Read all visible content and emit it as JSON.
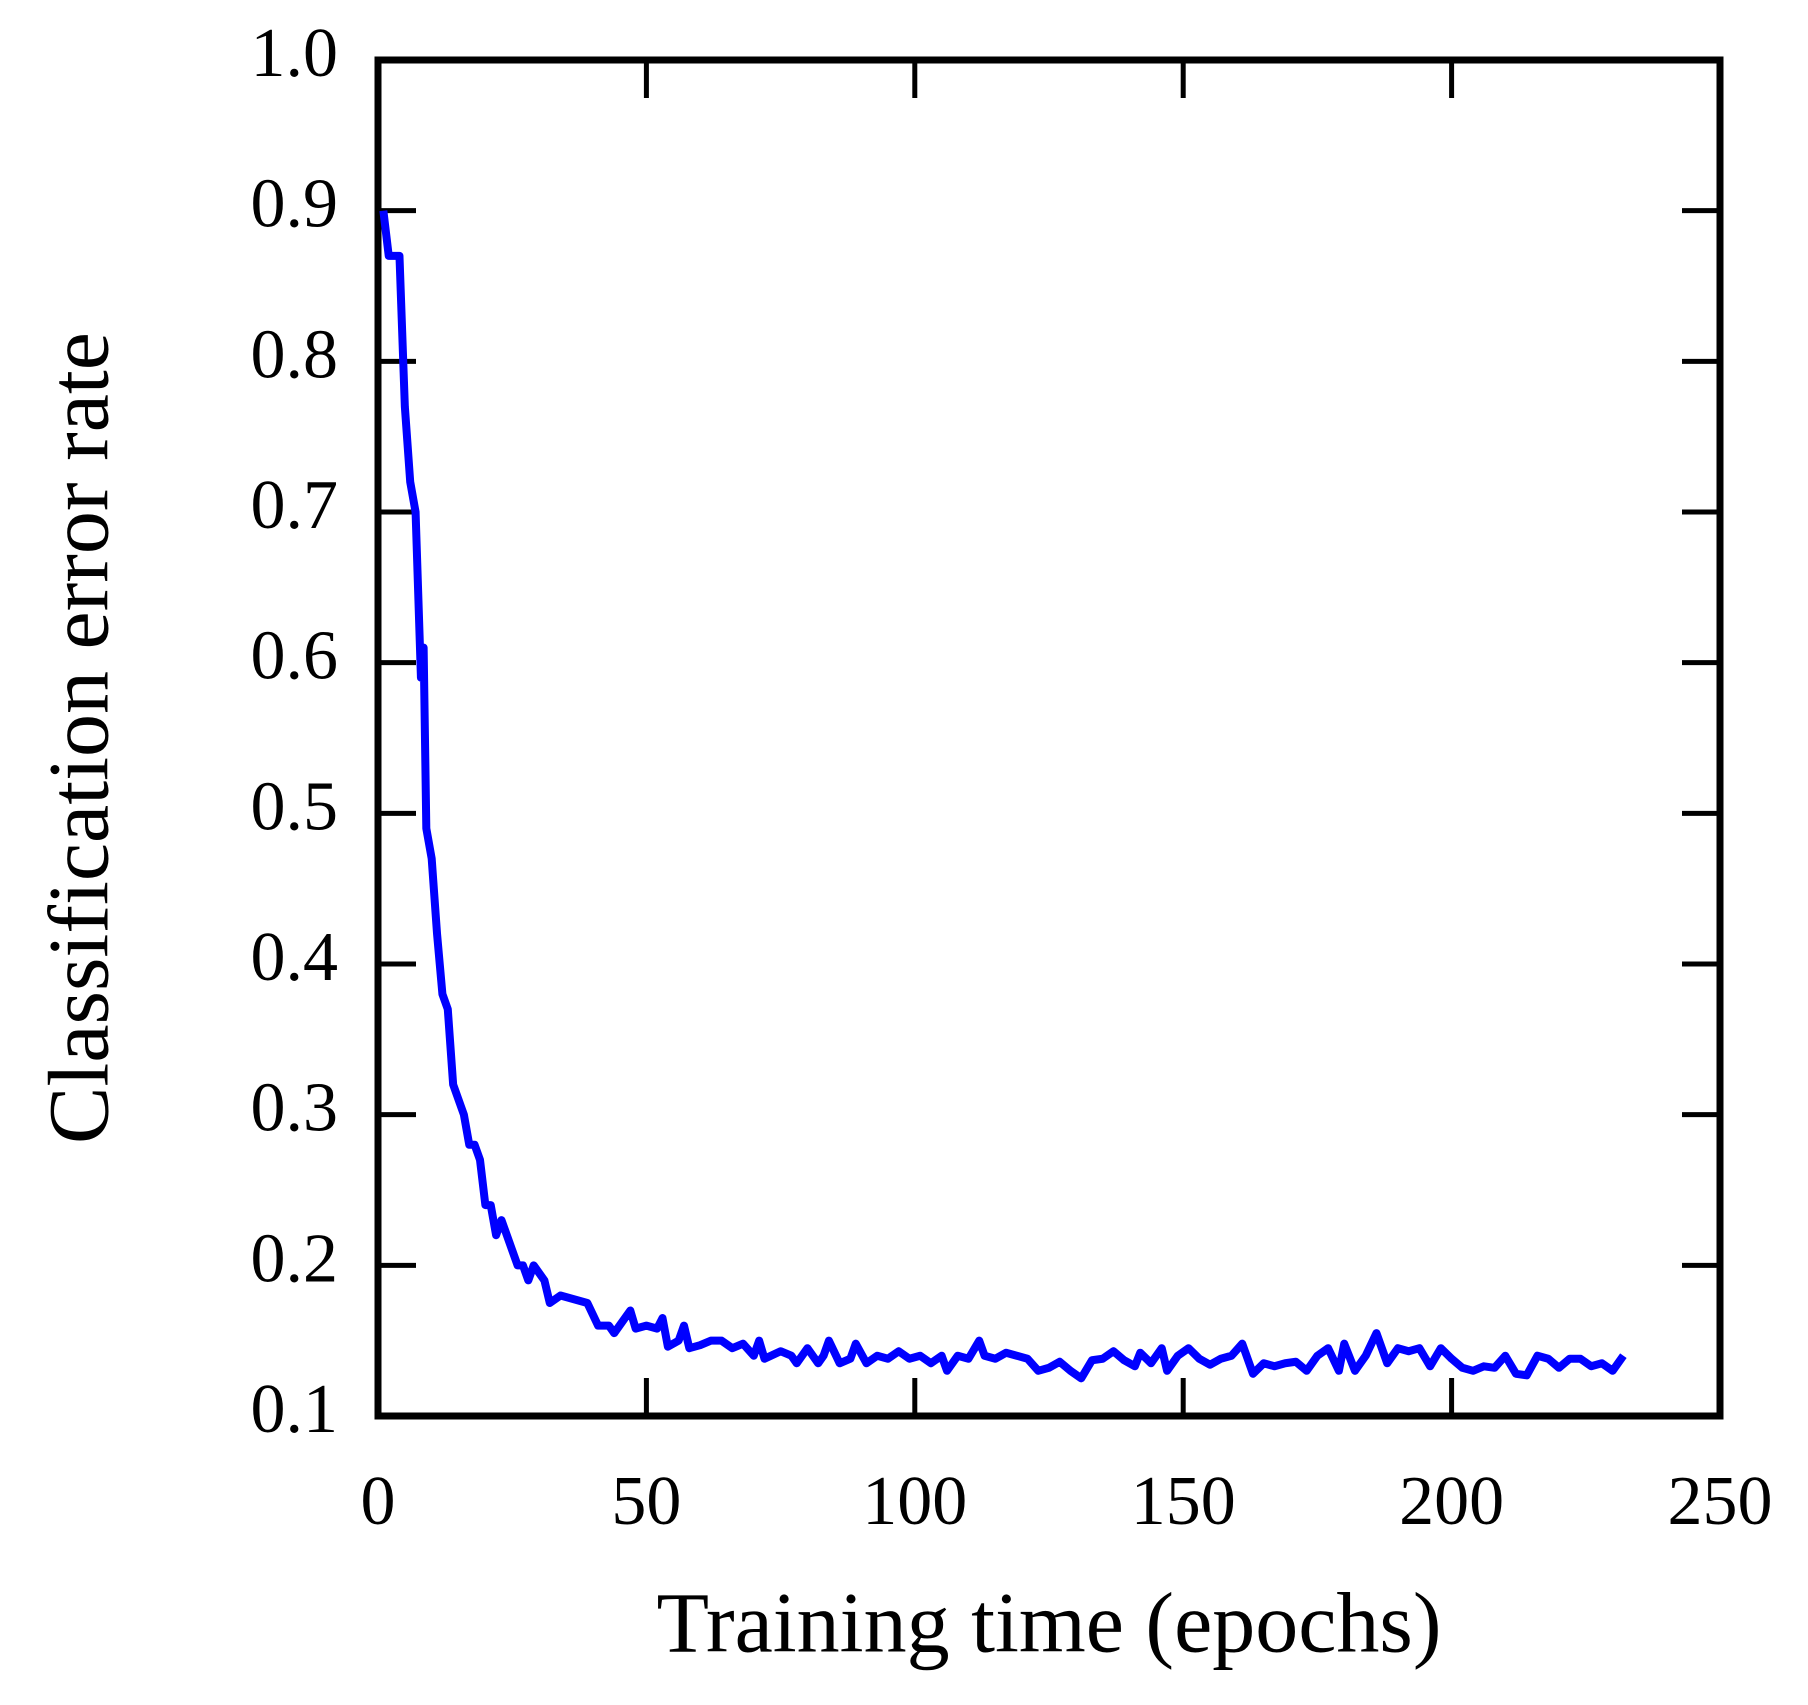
{
  "chart_data": {
    "type": "line",
    "xlabel": "Training time (epochs)",
    "ylabel": "Classification error rate",
    "xlim": [
      0,
      250
    ],
    "ylim": [
      0.1,
      1.0
    ],
    "xticks": [
      0,
      50,
      100,
      150,
      200,
      250
    ],
    "yticks": [
      {
        "value": 0.1,
        "label": "0.1"
      },
      {
        "value": 0.2,
        "label": "0.2"
      },
      {
        "value": 0.3,
        "label": "0.3"
      },
      {
        "value": 0.4,
        "label": "0.4"
      },
      {
        "value": 0.5,
        "label": "0.5"
      },
      {
        "value": 0.6,
        "label": "0.6"
      },
      {
        "value": 0.7,
        "label": "0.7"
      },
      {
        "value": 0.8,
        "label": "0.8"
      },
      {
        "value": 0.9,
        "label": "0.9"
      },
      {
        "value": 1.0,
        "label": "1.0"
      }
    ],
    "series": [
      {
        "color": "#0000ff",
        "x": [
          1,
          2,
          4,
          5,
          6,
          7,
          8,
          8.5,
          9,
          10,
          11,
          12,
          13,
          14,
          16,
          17,
          18,
          19,
          20,
          21,
          22,
          23,
          25,
          26,
          27,
          28,
          29,
          31,
          32,
          34,
          36,
          39,
          41,
          43,
          44,
          46,
          47,
          48,
          50,
          52,
          53,
          54,
          56,
          57,
          58,
          60,
          62,
          64,
          66,
          68,
          70,
          71,
          72,
          75,
          77,
          78,
          80,
          82,
          83,
          84,
          86,
          88,
          89,
          91,
          93,
          95,
          97,
          99,
          101,
          103,
          105,
          106,
          108,
          110,
          112,
          113,
          115,
          117,
          119,
          121,
          123,
          125,
          127,
          129,
          131,
          133,
          135,
          137,
          139,
          141,
          142,
          144,
          146,
          147,
          149,
          151,
          153,
          155,
          157,
          159,
          161,
          163,
          165,
          167,
          169,
          171,
          173,
          175,
          177,
          179,
          180,
          182,
          184,
          186,
          188,
          190,
          192,
          194,
          196,
          198,
          200,
          202,
          204,
          206,
          208,
          210,
          212,
          214,
          216,
          218,
          220,
          222,
          224,
          226,
          228,
          230,
          232
        ],
        "values": [
          0.9,
          0.87,
          0.87,
          0.77,
          0.72,
          0.7,
          0.59,
          0.61,
          0.49,
          0.47,
          0.42,
          0.38,
          0.37,
          0.32,
          0.3,
          0.28,
          0.28,
          0.27,
          0.24,
          0.24,
          0.22,
          0.23,
          0.21,
          0.2,
          0.2,
          0.19,
          0.2,
          0.19,
          0.175,
          0.18,
          0.178,
          0.175,
          0.16,
          0.16,
          0.155,
          0.165,
          0.17,
          0.158,
          0.16,
          0.158,
          0.165,
          0.146,
          0.15,
          0.16,
          0.145,
          0.147,
          0.15,
          0.15,
          0.145,
          0.148,
          0.14,
          0.15,
          0.138,
          0.143,
          0.14,
          0.135,
          0.145,
          0.135,
          0.14,
          0.15,
          0.135,
          0.138,
          0.148,
          0.135,
          0.14,
          0.138,
          0.143,
          0.138,
          0.14,
          0.135,
          0.14,
          0.13,
          0.14,
          0.138,
          0.15,
          0.14,
          0.138,
          0.142,
          0.14,
          0.138,
          0.13,
          0.132,
          0.136,
          0.13,
          0.125,
          0.137,
          0.138,
          0.143,
          0.137,
          0.133,
          0.142,
          0.135,
          0.145,
          0.13,
          0.14,
          0.145,
          0.138,
          0.134,
          0.138,
          0.14,
          0.148,
          0.128,
          0.135,
          0.133,
          0.135,
          0.136,
          0.13,
          0.14,
          0.145,
          0.13,
          0.148,
          0.13,
          0.14,
          0.155,
          0.135,
          0.145,
          0.143,
          0.145,
          0.133,
          0.145,
          0.138,
          0.132,
          0.13,
          0.133,
          0.132,
          0.14,
          0.128,
          0.127,
          0.14,
          0.138,
          0.132,
          0.138,
          0.138,
          0.133,
          0.135,
          0.13,
          0.14
        ]
      }
    ]
  }
}
